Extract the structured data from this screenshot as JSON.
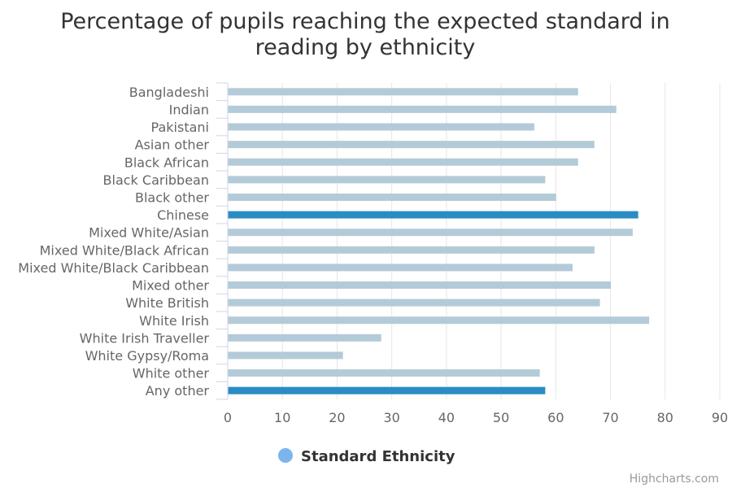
{
  "chart_data": {
    "type": "bar",
    "orientation": "horizontal",
    "title": "Percentage of pupils reaching the expected standard in reading by ethnicity",
    "title_lines": [
      "Percentage of pupils reaching the expected standard in",
      "reading by ethnicity"
    ],
    "categories": [
      "Bangladeshi",
      "Indian",
      "Pakistani",
      "Asian other",
      "Black African",
      "Black Caribbean",
      "Black other",
      "Chinese",
      "Mixed White/Asian",
      "Mixed White/Black African",
      "Mixed White/Black Caribbean",
      "Mixed other",
      "White British",
      "White Irish",
      "White Irish Traveller",
      "White Gypsy/Roma",
      "White other",
      "Any other"
    ],
    "series": [
      {
        "name": "Standard Ethnicity",
        "values": [
          64,
          71,
          56,
          67,
          64,
          58,
          60,
          75,
          74,
          67,
          63,
          70,
          68,
          77,
          28,
          21,
          57,
          58
        ],
        "highlighted": [
          false,
          false,
          false,
          false,
          false,
          false,
          false,
          true,
          false,
          false,
          false,
          false,
          false,
          false,
          false,
          false,
          false,
          true
        ]
      }
    ],
    "xlim": [
      0,
      90
    ],
    "x_ticks": [
      0,
      10,
      20,
      30,
      40,
      50,
      60,
      70,
      80,
      90
    ],
    "grid": true,
    "legend_position": "bottom-center",
    "colors": {
      "bar": "#b3cbd8",
      "bar_highlight": "#2b8cc4",
      "legend_marker": "#7cb5ec",
      "grid": "#e6e6e6",
      "axis": "#ccd6eb"
    }
  },
  "credits": "Highcharts.com"
}
